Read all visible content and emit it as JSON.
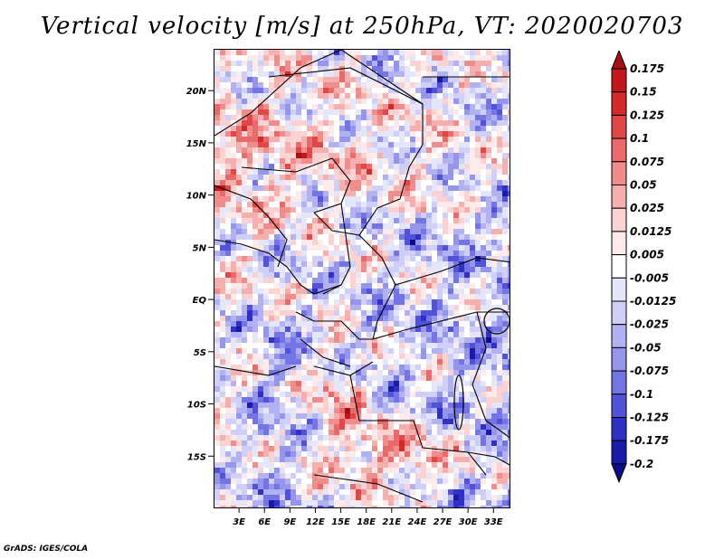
{
  "title": "Vertical velocity [m/s] at 250hPa, VT: 2020020703",
  "credit": "GrADS: IGES/COLA",
  "map": {
    "lat_range": [
      -20,
      24
    ],
    "lon_range": [
      0,
      35
    ],
    "lat_ticks": [
      {
        "value": 20,
        "label": "20N"
      },
      {
        "value": 15,
        "label": "15N"
      },
      {
        "value": 10,
        "label": "10N"
      },
      {
        "value": 5,
        "label": "5N"
      },
      {
        "value": 0,
        "label": "EQ"
      },
      {
        "value": -5,
        "label": "5S"
      },
      {
        "value": -10,
        "label": "10S"
      },
      {
        "value": -15,
        "label": "15S"
      }
    ],
    "lon_ticks": [
      {
        "value": 3,
        "label": "3E"
      },
      {
        "value": 6,
        "label": "6E"
      },
      {
        "value": 9,
        "label": "9E"
      },
      {
        "value": 12,
        "label": "12E"
      },
      {
        "value": 15,
        "label": "15E"
      },
      {
        "value": 18,
        "label": "18E"
      },
      {
        "value": 21,
        "label": "21E"
      },
      {
        "value": 24,
        "label": "24E"
      },
      {
        "value": 27,
        "label": "27E"
      },
      {
        "value": 30,
        "label": "30E"
      },
      {
        "value": 33,
        "label": "33E"
      }
    ]
  },
  "colorbar": {
    "levels": [
      "0.175",
      "0.15",
      "0.125",
      "0.1",
      "0.075",
      "0.05",
      "0.025",
      "0.0125",
      "0.005",
      "-0.005",
      "-0.0125",
      "-0.025",
      "-0.05",
      "-0.075",
      "-0.1",
      "-0.125",
      "-0.175",
      "-0.2"
    ],
    "colors": [
      "#a50f15",
      "#c0161e",
      "#d42a2a",
      "#e04848",
      "#e86a6a",
      "#ef8c8c",
      "#f5afaf",
      "#fad2d2",
      "#fdeaea",
      "#ffffff",
      "#e6e6fb",
      "#cfcff7",
      "#b2b2f2",
      "#9595ec",
      "#7474e4",
      "#5252d8",
      "#3030c4",
      "#1a1aa8",
      "#0d0d88"
    ]
  }
}
